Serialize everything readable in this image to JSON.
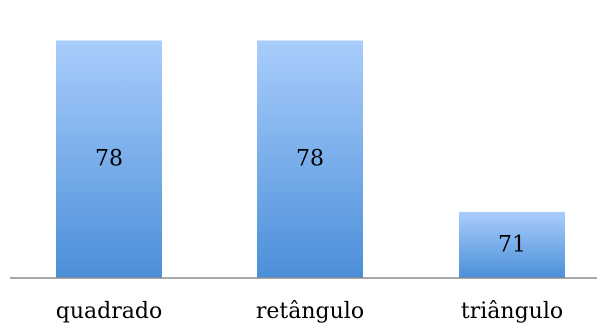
{
  "chart_data": {
    "type": "bar",
    "categories": [
      "quadrado",
      "retângulo",
      "triângulo"
    ],
    "values": [
      78,
      78,
      71
    ],
    "data_labels": [
      "78",
      "78",
      "71"
    ],
    "title": "",
    "xlabel": "",
    "ylabel": "",
    "ylim": [
      68.3,
      79
    ],
    "grid": false,
    "legend": "none",
    "colors": {
      "bar_top": "#a9cdfc",
      "bar_bottom": "#4b8fd9",
      "axis": "#8c8c8c"
    }
  }
}
